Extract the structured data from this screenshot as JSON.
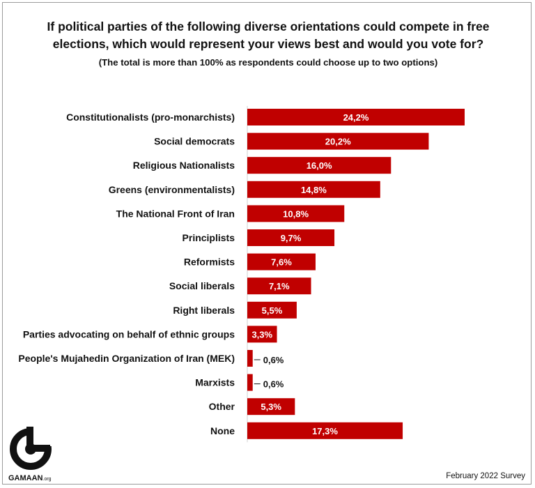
{
  "chart_data": {
    "type": "bar",
    "orientation": "horizontal",
    "title": "If political parties of the following diverse orientations could compete in free elections,  which would represent your views best and would you vote for?",
    "subtitle": "(The total is more than 100% as respondents could choose up to two options)",
    "categories": [
      "Constitutionalists (pro-monarchists)",
      "Social democrats",
      "Religious Nationalists",
      "Greens (environmentalists)",
      "The National Front of Iran",
      "Principlists",
      "Reformists",
      "Social liberals",
      "Right liberals",
      "Parties advocating on behalf of ethnic groups",
      "People's Mujahedin Organization of Iran (MEK)",
      "Marxists",
      "Other",
      "None"
    ],
    "values": [
      24.2,
      20.2,
      16.0,
      14.8,
      10.8,
      9.7,
      7.6,
      7.1,
      5.5,
      3.3,
      0.6,
      0.6,
      5.3,
      17.3
    ],
    "value_labels": [
      "24,2%",
      "20,2%",
      "16,0%",
      "14,8%",
      "10,8%",
      "9,7%",
      "7,6%",
      "7,1%",
      "5,5%",
      "3,3%",
      "0,6%",
      "0,6%",
      "5,3%",
      "17,3%"
    ],
    "xlim": [
      0,
      24.2
    ],
    "bar_color": "#c00000",
    "grid": false,
    "legend": "none"
  },
  "logo": {
    "name": "GAMAAN",
    "suffix": ".org"
  },
  "footer": {
    "source": "February 2022 Survey"
  }
}
